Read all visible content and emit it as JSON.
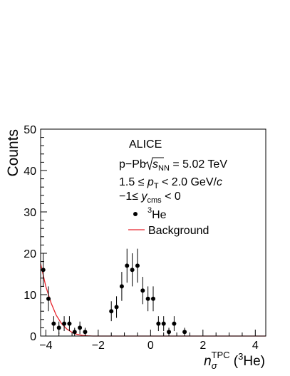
{
  "chart_data": {
    "type": "scatter",
    "xlabel_main": "n",
    "xlabel_sub": "σ",
    "xlabel_sup": "TPC",
    "xlabel_paren_open": " (",
    "xlabel_paren_sup": "3",
    "xlabel_paren_text": "He)",
    "ylabel": "Counts",
    "xlim": [
      -4.2,
      4.4
    ],
    "ylim": [
      0,
      50
    ],
    "x_ticks": [
      -4,
      -2,
      0,
      2,
      4
    ],
    "x_tick_labels": [
      "−4",
      "−2",
      "0",
      "2",
      "4"
    ],
    "y_ticks": [
      0,
      10,
      20,
      30,
      40,
      50
    ],
    "y_tick_labels": [
      "0",
      "10",
      "20",
      "30",
      "40",
      "50"
    ],
    "legend_placement": "top-right",
    "annotations": {
      "experiment": "ALICE",
      "system": "p−Pb",
      "energy_symbol": "s",
      "energy_sub": "NN",
      "energy_value": " = 5.02 TeV",
      "pt_prefix": "1.5 ≤ ",
      "pt_var": "p",
      "pt_sub": "T",
      "pt_mid": " < 2.0 GeV/",
      "pt_unit": "c",
      "y_prefix": "−1≤ ",
      "y_var": "y",
      "y_sub": "cms",
      "y_suffix": " < 0"
    },
    "series": [
      {
        "name_sup": "3",
        "name_text": "He",
        "color": "#000000",
        "marker": "circle",
        "points": [
          {
            "x": -4.1,
            "y": 16,
            "err": 4.0
          },
          {
            "x": -3.9,
            "y": 9,
            "err": 3.0
          },
          {
            "x": -3.7,
            "y": 3,
            "err": 1.8
          },
          {
            "x": -3.5,
            "y": 2,
            "err": 1.5
          },
          {
            "x": -3.3,
            "y": 3,
            "err": 1.8
          },
          {
            "x": -3.1,
            "y": 3,
            "err": 1.8
          },
          {
            "x": -2.9,
            "y": 1,
            "err": 1.0
          },
          {
            "x": -2.7,
            "y": 2,
            "err": 1.5
          },
          {
            "x": -2.5,
            "y": 1,
            "err": 1.0
          },
          {
            "x": -1.5,
            "y": 6,
            "err": 2.4
          },
          {
            "x": -1.3,
            "y": 7,
            "err": 2.6
          },
          {
            "x": -1.1,
            "y": 12,
            "err": 3.5
          },
          {
            "x": -0.9,
            "y": 17,
            "err": 4.1
          },
          {
            "x": -0.7,
            "y": 16,
            "err": 4.0
          },
          {
            "x": -0.5,
            "y": 17,
            "err": 4.1
          },
          {
            "x": -0.3,
            "y": 11,
            "err": 3.3
          },
          {
            "x": -0.1,
            "y": 9,
            "err": 3.0
          },
          {
            "x": 0.1,
            "y": 9,
            "err": 3.0
          },
          {
            "x": 0.3,
            "y": 3,
            "err": 1.8
          },
          {
            "x": 0.5,
            "y": 3,
            "err": 1.8
          },
          {
            "x": 0.7,
            "y": 1,
            "err": 1.0
          },
          {
            "x": 0.9,
            "y": 3,
            "err": 1.8
          },
          {
            "x": 1.3,
            "y": 1,
            "err": 1.0
          }
        ]
      },
      {
        "name": "Background",
        "color": "#e8242d",
        "line": "solid",
        "points": [
          {
            "x": -4.2,
            "y": 17.5
          },
          {
            "x": -4.0,
            "y": 12.0
          },
          {
            "x": -3.8,
            "y": 8.0
          },
          {
            "x": -3.6,
            "y": 5.0
          },
          {
            "x": -3.4,
            "y": 3.0
          },
          {
            "x": -3.2,
            "y": 1.7
          },
          {
            "x": -3.0,
            "y": 0.9
          },
          {
            "x": -2.8,
            "y": 0.4
          },
          {
            "x": -2.6,
            "y": 0.15
          },
          {
            "x": -2.4,
            "y": 0.05
          },
          {
            "x": -2.2,
            "y": 0
          },
          {
            "x": 4.4,
            "y": 0
          }
        ]
      }
    ]
  }
}
